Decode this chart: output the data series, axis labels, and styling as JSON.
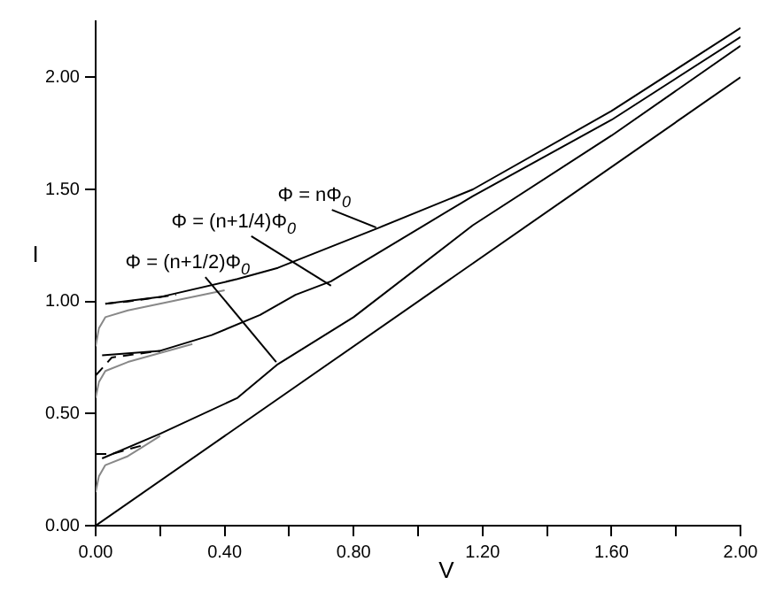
{
  "chart_data": {
    "type": "line",
    "xlabel": "V",
    "ylabel": "I",
    "xlim": [
      0,
      2
    ],
    "ylim": [
      0,
      2.25
    ],
    "xticks": [
      {
        "value": 0,
        "label": "0.00"
      },
      {
        "value": 0.2,
        "label": null
      },
      {
        "value": 0.4,
        "label": "0.40"
      },
      {
        "value": 0.6,
        "label": null
      },
      {
        "value": 0.8,
        "label": "0.80"
      },
      {
        "value": 1.0,
        "label": null
      },
      {
        "value": 1.2,
        "label": "1.20"
      },
      {
        "value": 1.4,
        "label": null
      },
      {
        "value": 1.6,
        "label": "1.60"
      },
      {
        "value": 1.8,
        "label": null
      },
      {
        "value": 2.0,
        "label": "2.00"
      }
    ],
    "yticks": [
      {
        "value": 0,
        "label": "0.00"
      },
      {
        "value": 0.5,
        "label": "0.50"
      },
      {
        "value": 1,
        "label": "1.00"
      },
      {
        "value": 1.5,
        "label": "1.50"
      },
      {
        "value": 2,
        "label": "2.00"
      }
    ],
    "grid": false,
    "legend": false,
    "marker": "none",
    "series": [
      {
        "color": "#000000",
        "line_style": "solid",
        "x": [
          0,
          2
        ],
        "values": [
          0,
          2
        ]
      },
      {
        "color": "#000000",
        "line_style": "solid",
        "x": [
          0.02,
          0.2,
          0.44,
          0.565,
          0.8,
          1.17,
          1.6,
          2.0
        ],
        "values": [
          0.3,
          0.41,
          0.57,
          0.72,
          0.93,
          1.34,
          1.74,
          2.14
        ]
      },
      {
        "color": "#000000",
        "line_style": "solid",
        "x": [
          0.02,
          0.2,
          0.36,
          0.51,
          0.62,
          0.73,
          1.17,
          1.6,
          2.0
        ],
        "values": [
          0.76,
          0.78,
          0.85,
          0.94,
          1.03,
          1.09,
          1.47,
          1.81,
          2.18
        ]
      },
      {
        "color": "#000000",
        "line_style": "solid",
        "x": [
          0.03,
          0.2,
          0.44,
          0.565,
          0.88,
          1.17,
          1.6,
          2.0
        ],
        "values": [
          0.99,
          1.02,
          1.1,
          1.15,
          1.33,
          1.5,
          1.85,
          2.22
        ]
      },
      {
        "color": "#888888",
        "line_style": "solid",
        "x": [
          0,
          0.01,
          0.03,
          0.1,
          0.2
        ],
        "values": [
          0.15,
          0.22,
          0.27,
          0.31,
          0.4
        ]
      },
      {
        "color": "#888888",
        "line_style": "solid",
        "x": [
          0,
          0.01,
          0.03,
          0.1,
          0.3
        ],
        "values": [
          0.57,
          0.64,
          0.69,
          0.73,
          0.81
        ]
      },
      {
        "color": "#888888",
        "line_style": "solid",
        "x": [
          0,
          0.01,
          0.03,
          0.1,
          0.4
        ],
        "values": [
          0.8,
          0.88,
          0.93,
          0.96,
          1.05
        ]
      },
      {
        "color": "#000000",
        "line_style": "dashed",
        "x": [
          0,
          0.05,
          0.15
        ],
        "values": [
          0.32,
          0.32,
          0.36
        ]
      },
      {
        "color": "#000000",
        "line_style": "dashed",
        "x": [
          0,
          0.05,
          0.2
        ],
        "values": [
          0.67,
          0.75,
          0.78
        ]
      },
      {
        "color": "#000000",
        "line_style": "dashed",
        "x": [
          0.03,
          0.1,
          0.25
        ],
        "values": [
          0.99,
          1.0,
          1.03
        ]
      }
    ],
    "annotations": [
      {
        "text": "Φ = nΦ$_{0}$",
        "x": 0.87,
        "y": 1.33
      },
      {
        "text": "Φ = (n+1/4)Φ$_{0}$",
        "x": 0.73,
        "y": 1.07
      },
      {
        "text": "Φ = (n+1/2)Φ$_{0}$",
        "x": 0.56,
        "y": 0.73
      }
    ]
  }
}
